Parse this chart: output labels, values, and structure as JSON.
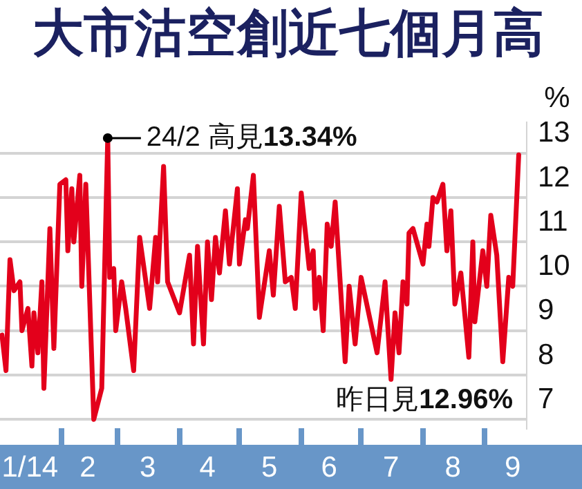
{
  "chart_data": {
    "type": "line",
    "title": "大市沽空創近七個月高",
    "ylabel": "%",
    "x": [
      "2014-01-02",
      "2014-01-04",
      "2014-01-06",
      "2014-01-08",
      "2014-01-11",
      "2014-01-12",
      "2014-01-15",
      "2014-01-17",
      "2014-01-18",
      "2014-01-20",
      "2014-01-22",
      "2014-01-23",
      "2014-01-26",
      "2014-01-28",
      "2014-01-31",
      "2014-02-03",
      "2014-02-04",
      "2014-02-06",
      "2014-02-07",
      "2014-02-10",
      "2014-02-11",
      "2014-02-13",
      "2014-02-17",
      "2014-02-21",
      "2014-02-24",
      "2014-02-25",
      "2014-02-27",
      "2014-02-28",
      "2014-03-03",
      "2014-03-05",
      "2014-03-09",
      "2014-03-12",
      "2014-03-17",
      "2014-03-20",
      "2014-03-21",
      "2014-03-24",
      "2014-03-26",
      "2014-04-01",
      "2014-04-06",
      "2014-04-08",
      "2014-04-10",
      "2014-04-13",
      "2014-04-15",
      "2014-04-17",
      "2014-04-19",
      "2014-04-21",
      "2014-04-24",
      "2014-04-26",
      "2014-04-30",
      "2014-05-01",
      "2014-05-04",
      "2014-05-05",
      "2014-05-08",
      "2014-05-11",
      "2014-05-16",
      "2014-05-18",
      "2014-05-21",
      "2014-05-24",
      "2014-05-27",
      "2014-05-29",
      "2014-06-01",
      "2014-06-05",
      "2014-06-07",
      "2014-06-08",
      "2014-06-10",
      "2014-06-12",
      "2014-06-14",
      "2014-06-16",
      "2014-06-18",
      "2014-06-23",
      "2014-06-25",
      "2014-06-28",
      "2014-07-01",
      "2014-07-09",
      "2014-07-13",
      "2014-07-16",
      "2014-07-18",
      "2014-07-20",
      "2014-07-22",
      "2014-07-24",
      "2014-07-25",
      "2014-07-27",
      "2014-08-01",
      "2014-08-03",
      "2014-08-04",
      "2014-08-06",
      "2014-08-08",
      "2014-08-11",
      "2014-08-13",
      "2014-08-15",
      "2014-08-17",
      "2014-08-20",
      "2014-08-24",
      "2014-08-26",
      "2014-08-27",
      "2014-08-31",
      "2014-09-02",
      "2014-09-04",
      "2014-09-07",
      "2014-09-10",
      "2014-09-13",
      "2014-09-15",
      "2014-09-18"
    ],
    "series": [
      {
        "color": "#e3001b",
        "values": [
          8.9,
          8.1,
          10.6,
          9.9,
          10.1,
          9.0,
          9.5,
          8.2,
          9.4,
          8.5,
          10.1,
          7.7,
          11.3,
          8.6,
          12.3,
          12.4,
          10.8,
          12.2,
          11.0,
          12.5,
          10.0,
          12.3,
          7.0,
          7.7,
          13.34,
          10.2,
          10.4,
          9.0,
          10.1,
          9.5,
          8.1,
          11.1,
          9.5,
          11.1,
          10.1,
          12.7,
          10.1,
          9.4,
          10.7,
          8.7,
          10.9,
          8.7,
          11.0,
          9.7,
          11.1,
          10.3,
          11.7,
          10.5,
          12.2,
          10.5,
          11.5,
          11.3,
          12.5,
          9.3,
          10.8,
          9.8,
          11.8,
          10.1,
          10.2,
          9.5,
          12.1,
          10.4,
          10.8,
          9.5,
          10.2,
          9.0,
          11.4,
          10.9,
          11.9,
          8.3,
          10.0,
          8.7,
          10.2,
          8.5,
          10.1,
          7.9,
          9.4,
          8.5,
          10.1,
          9.6,
          11.2,
          11.3,
          10.5,
          11.4,
          10.9,
          12.0,
          11.9,
          12.3,
          10.8,
          11.7,
          9.6,
          10.3,
          8.4,
          11.0,
          9.2,
          10.8,
          10.0,
          11.6,
          10.7,
          8.3,
          10.2,
          10.0,
          12.96
        ]
      }
    ],
    "xlim": [
      "2014-01-01",
      "2014-09-22"
    ],
    "xticks": [
      {
        "value": "2014-01-16",
        "label": "1/14"
      },
      {
        "value": "2014-02-01",
        "label": null
      },
      {
        "value": "2014-02-14",
        "label": "2"
      },
      {
        "value": "2014-03-01",
        "label": null
      },
      {
        "value": "2014-03-16",
        "label": "3"
      },
      {
        "value": "2014-04-01",
        "label": null
      },
      {
        "value": "2014-04-15",
        "label": "4"
      },
      {
        "value": "2014-05-01",
        "label": null
      },
      {
        "value": "2014-05-16",
        "label": "5"
      },
      {
        "value": "2014-06-01",
        "label": null
      },
      {
        "value": "2014-06-15",
        "label": "6"
      },
      {
        "value": "2014-07-01",
        "label": null
      },
      {
        "value": "2014-07-16",
        "label": "7"
      },
      {
        "value": "2014-08-01",
        "label": null
      },
      {
        "value": "2014-08-16",
        "label": "8"
      },
      {
        "value": "2014-09-01",
        "label": null
      },
      {
        "value": "2014-09-15",
        "label": "9"
      }
    ],
    "ylim": [
      6.8,
      13.7
    ],
    "yticks": [
      7,
      8,
      9,
      10,
      11,
      12,
      13
    ],
    "grid": "y",
    "marker": "none",
    "line_style": "solid",
    "annotations": [
      {
        "text": "24/2 高見13.34%",
        "x": "2014-02-24",
        "y": 13.34
      },
      "昨日見12.96%"
    ]
  }
}
